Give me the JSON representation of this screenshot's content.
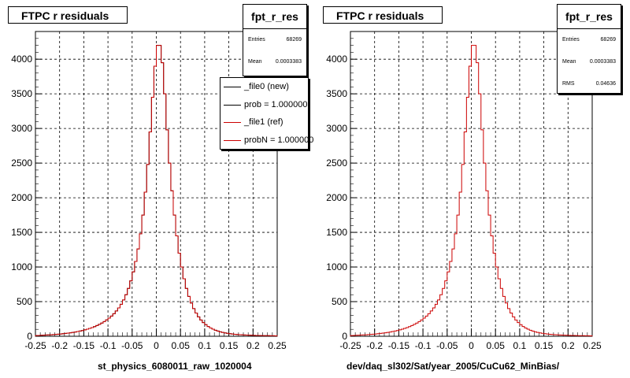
{
  "chart_data": [
    {
      "type": "histogram",
      "title": "FTPC r residuals",
      "xlabel": "st_physics_6080011_raw_1020004",
      "ylabel": "",
      "xlim": [
        -0.25,
        0.25
      ],
      "ylim": [
        0,
        4400
      ],
      "x_ticks": [
        "-0.25",
        "-0.2",
        "-0.15",
        "-0.1",
        "-0.05",
        "0",
        "0.05",
        "0.1",
        "0.15",
        "0.2",
        "0.25"
      ],
      "y_ticks": [
        "0",
        "500",
        "1000",
        "1500",
        "2000",
        "2500",
        "3000",
        "3500",
        "4000"
      ],
      "grid": true,
      "bin_width": 0.005,
      "series": [
        {
          "name": "_file0 (new)",
          "color": "#000000",
          "values": [
            10,
            12,
            14,
            16,
            18,
            20,
            22,
            24,
            27,
            30,
            33,
            37,
            41,
            45,
            50,
            55,
            61,
            68,
            75,
            83,
            92,
            102,
            113,
            125,
            139,
            155,
            172,
            191,
            212,
            236,
            262,
            292,
            326,
            365,
            410,
            462,
            525,
            600,
            690,
            800,
            930,
            1080,
            1260,
            1480,
            1750,
            2080,
            2480,
            2950,
            3450,
            3900,
            4200,
            4200,
            3950,
            3500,
            2980,
            2500,
            2100,
            1750,
            1450,
            1200,
            1000,
            830,
            690,
            575,
            480,
            400,
            335,
            280,
            235,
            198,
            167,
            141,
            120,
            102,
            87,
            75,
            64,
            55,
            48,
            42,
            37,
            33,
            29,
            26,
            23,
            21,
            19,
            17,
            15,
            14,
            13,
            12,
            11,
            10,
            9,
            8,
            8,
            7,
            7,
            6
          ]
        },
        {
          "name": "_file1 (ref)",
          "color": "#cc0000",
          "values": [
            10,
            12,
            14,
            16,
            18,
            20,
            22,
            24,
            27,
            30,
            33,
            37,
            41,
            45,
            50,
            55,
            61,
            68,
            75,
            83,
            92,
            102,
            113,
            125,
            139,
            155,
            172,
            191,
            212,
            236,
            262,
            292,
            326,
            365,
            410,
            462,
            525,
            600,
            690,
            800,
            930,
            1080,
            1260,
            1480,
            1750,
            2080,
            2480,
            2950,
            3450,
            3900,
            4200,
            4200,
            3950,
            3500,
            2980,
            2500,
            2100,
            1750,
            1450,
            1200,
            1000,
            830,
            690,
            575,
            480,
            400,
            335,
            280,
            235,
            198,
            167,
            141,
            120,
            102,
            87,
            75,
            64,
            55,
            48,
            42,
            37,
            33,
            29,
            26,
            23,
            21,
            19,
            17,
            15,
            14,
            13,
            12,
            11,
            10,
            9,
            8,
            8,
            7,
            7,
            6
          ]
        }
      ],
      "stats": {
        "name": "fpt_r_res",
        "rows": [
          {
            "label": "Entries",
            "value": "68269"
          },
          {
            "label": "Mean",
            "value": "0.0003383"
          }
        ]
      },
      "legend": {
        "placement": "top-right",
        "entries": [
          {
            "text": "_file0 (new)",
            "color": "#000000"
          },
          {
            "text": "prob = 1.000000",
            "color": "#000000"
          },
          {
            "text": "_file1 (ref)",
            "color": "#cc0000"
          },
          {
            "text": "probN = 1.000000",
            "color": "#cc0000"
          }
        ]
      }
    },
    {
      "type": "histogram",
      "title": "FTPC r residuals",
      "xlabel": "dev/daq_sl302/Sat/year_2005/CuCu62_MinBias/",
      "ylabel": "",
      "xlim": [
        -0.25,
        0.25
      ],
      "ylim": [
        0,
        4400
      ],
      "x_ticks": [
        "-0.25",
        "-0.2",
        "-0.15",
        "-0.1",
        "-0.05",
        "0",
        "0.05",
        "0.1",
        "0.15",
        "0.2",
        "0.25"
      ],
      "y_ticks": [
        "0",
        "500",
        "1000",
        "1500",
        "2000",
        "2500",
        "3000",
        "3500",
        "4000"
      ],
      "grid": true,
      "bin_width": 0.005,
      "series": [
        {
          "name": "",
          "color": "#cc0000",
          "values": [
            10,
            12,
            14,
            16,
            18,
            20,
            22,
            24,
            27,
            30,
            33,
            37,
            41,
            45,
            50,
            55,
            61,
            68,
            75,
            83,
            92,
            102,
            113,
            125,
            139,
            155,
            172,
            191,
            212,
            236,
            262,
            292,
            326,
            365,
            410,
            462,
            525,
            600,
            690,
            800,
            930,
            1080,
            1260,
            1480,
            1750,
            2080,
            2480,
            2950,
            3450,
            3900,
            4200,
            4200,
            3950,
            3500,
            2980,
            2500,
            2100,
            1750,
            1450,
            1200,
            1000,
            830,
            690,
            575,
            480,
            400,
            335,
            280,
            235,
            198,
            167,
            141,
            120,
            102,
            87,
            75,
            64,
            55,
            48,
            42,
            37,
            33,
            29,
            26,
            23,
            21,
            19,
            17,
            15,
            14,
            13,
            12,
            11,
            10,
            9,
            8,
            8,
            7,
            7,
            6
          ]
        }
      ],
      "stats": {
        "name": "fpt_r_res",
        "rows": [
          {
            "label": "Entries",
            "value": "68269"
          },
          {
            "label": "Mean",
            "value": "0.0003383"
          },
          {
            "label": "RMS",
            "value": "0.04636"
          }
        ]
      }
    }
  ]
}
